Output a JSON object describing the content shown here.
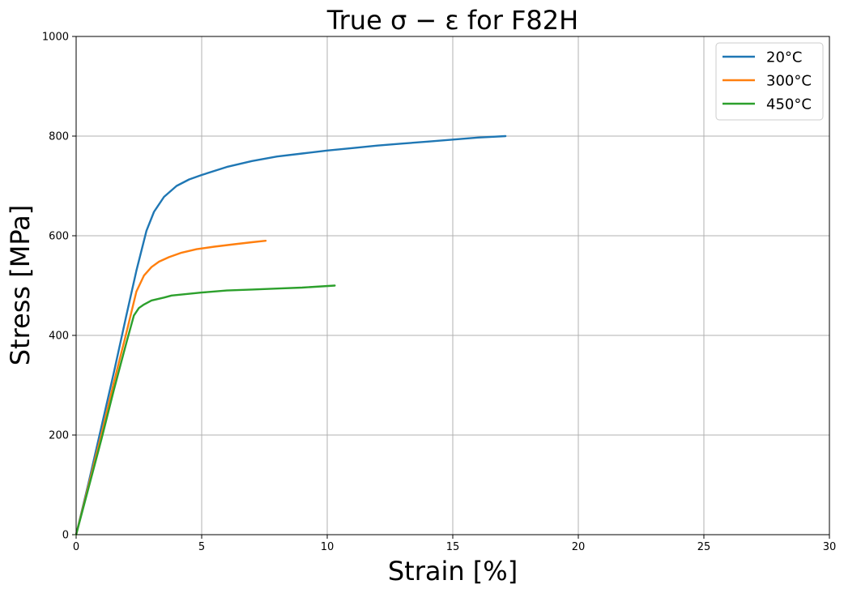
{
  "chart_data": {
    "type": "line",
    "title": "True σ − ε for F82H",
    "xlabel": "Strain [%]",
    "ylabel": "Stress [MPa]",
    "xlim": [
      0,
      30
    ],
    "ylim": [
      0,
      1000
    ],
    "xticks": [
      0,
      5,
      10,
      15,
      20,
      25,
      30
    ],
    "yticks": [
      0,
      200,
      400,
      600,
      800,
      1000
    ],
    "grid": true,
    "legend_position": "top-right",
    "series": [
      {
        "name": "20°C",
        "color": "#1f77b4",
        "x": [
          0,
          0.5,
          1.0,
          1.5,
          2.0,
          2.4,
          2.8,
          3.1,
          3.5,
          4.0,
          4.5,
          5.0,
          6.0,
          7.0,
          8.0,
          9.0,
          10.0,
          11.0,
          12.0,
          13.0,
          14.0,
          15.0,
          16.0,
          17.1
        ],
        "y": [
          0,
          105,
          215,
          325,
          440,
          530,
          610,
          648,
          678,
          700,
          713,
          722,
          738,
          750,
          759,
          765,
          771,
          776,
          781,
          785,
          789,
          793,
          797,
          800
        ]
      },
      {
        "name": "300°C",
        "color": "#ff7f0e",
        "x": [
          0,
          0.5,
          1.0,
          1.5,
          2.0,
          2.4,
          2.7,
          3.0,
          3.3,
          3.7,
          4.2,
          4.8,
          5.5,
          6.3,
          7.0,
          7.55
        ],
        "y": [
          0,
          100,
          200,
          305,
          405,
          488,
          520,
          537,
          548,
          557,
          566,
          573,
          578,
          583,
          587,
          590
        ]
      },
      {
        "name": "450°C",
        "color": "#2ca02c",
        "x": [
          0,
          0.5,
          1.0,
          1.5,
          2.0,
          2.3,
          2.5,
          2.7,
          3.0,
          3.5,
          3.8,
          5.0,
          6.0,
          7.0,
          8.0,
          9.0,
          10.3
        ],
        "y": [
          0,
          95,
          190,
          290,
          385,
          440,
          455,
          462,
          470,
          476,
          480,
          486,
          490,
          492,
          494,
          496,
          500
        ]
      }
    ]
  },
  "colors": {
    "grid": "#b0b0b0",
    "axis": "#000000",
    "legend_border": "#cccccc"
  }
}
